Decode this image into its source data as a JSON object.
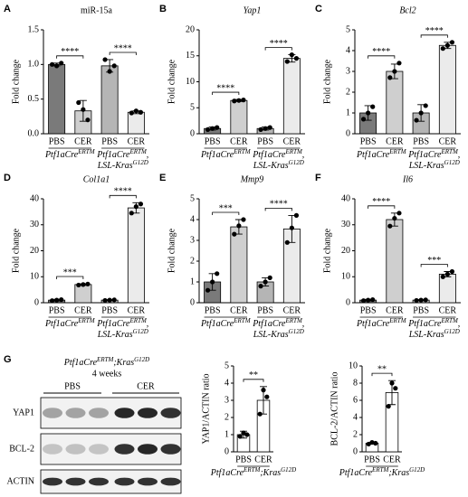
{
  "chart_data": [
    {
      "type": "bar",
      "panel": "A",
      "title": "miR-15a",
      "title_italic": false,
      "ylabel": "Fold change",
      "categories": [
        "PBS",
        "CER",
        "PBS",
        "CER"
      ],
      "groups": [
        [
          [
            {
              "text": "Ptf1aCre"
            },
            {
              "text": "ERTM",
              "sup": true
            }
          ]
        ],
        [
          [
            {
              "text": "Ptf1aCre"
            },
            {
              "text": "ERTM",
              "sup": true
            },
            {
              "text": ","
            }
          ],
          [
            {
              "text": "LSL-Kras"
            },
            {
              "text": "G12D",
              "sup": true
            }
          ]
        ]
      ],
      "values": [
        1.0,
        0.33,
        0.98,
        0.31
      ],
      "errors": [
        0.02,
        0.15,
        0.09,
        0.02
      ],
      "points": [
        [
          1.0,
          0.98,
          1.02
        ],
        [
          0.45,
          0.35,
          0.2
        ],
        [
          1.07,
          0.9,
          0.98
        ],
        [
          0.3,
          0.33,
          0.31
        ]
      ],
      "significance": [
        "****",
        "****"
      ],
      "colors": [
        "#7a7a7a",
        "#cfcfcf",
        "#b5b5b5",
        "#ebebeb"
      ],
      "ylim": [
        0,
        1.5
      ],
      "yticks": [
        {
          "value": 0,
          "label": "0.0"
        },
        0.5,
        {
          "value": 1,
          "label": "1.0"
        },
        1.5
      ]
    },
    {
      "type": "bar",
      "panel": "B",
      "title": "Yap1",
      "title_italic": true,
      "ylabel": "Fold change",
      "categories": [
        "PBS",
        "CER",
        "PBS",
        "CER"
      ],
      "groups": [
        [
          [
            {
              "text": "Ptf1aCre"
            },
            {
              "text": "ERTM",
              "sup": true
            }
          ]
        ],
        [
          [
            {
              "text": "Ptf1aCre"
            },
            {
              "text": "ERTM",
              "sup": true
            },
            {
              "text": ","
            }
          ],
          [
            {
              "text": "LSL-Kras"
            },
            {
              "text": "G12D",
              "sup": true
            }
          ]
        ]
      ],
      "values": [
        1.0,
        6.4,
        1.0,
        14.5
      ],
      "errors": [
        0.3,
        0.2,
        0.3,
        0.7
      ],
      "points": [
        [
          0.8,
          1.0,
          1.2
        ],
        [
          6.3,
          6.4,
          6.5
        ],
        [
          0.8,
          1.0,
          1.2
        ],
        [
          13.9,
          15.2,
          14.5
        ]
      ],
      "significance": [
        "****",
        "****"
      ],
      "colors": [
        "#7a7a7a",
        "#cfcfcf",
        "#b5b5b5",
        "#ebebeb"
      ],
      "ylim": [
        0,
        20
      ],
      "yticks": [
        0,
        5,
        10,
        15,
        20
      ]
    },
    {
      "type": "bar",
      "panel": "C",
      "title": "Bcl2",
      "title_italic": true,
      "ylabel": "Fold change",
      "categories": [
        "PBS",
        "CER",
        "PBS",
        "CER"
      ],
      "groups": [
        [
          [
            {
              "text": "Ptf1aCre"
            },
            {
              "text": "ERTM",
              "sup": true
            }
          ]
        ],
        [
          [
            {
              "text": "Ptf1aCre"
            },
            {
              "text": "ERTM",
              "sup": true
            },
            {
              "text": ","
            }
          ],
          [
            {
              "text": "LSL-Kras"
            },
            {
              "text": "G12D",
              "sup": true
            }
          ]
        ]
      ],
      "values": [
        1.0,
        3.0,
        1.0,
        4.25
      ],
      "errors": [
        0.35,
        0.35,
        0.4,
        0.15
      ],
      "points": [
        [
          0.7,
          1.0,
          1.3
        ],
        [
          2.7,
          3.0,
          3.4
        ],
        [
          0.65,
          1.0,
          1.35
        ],
        [
          4.1,
          4.25,
          4.4
        ]
      ],
      "significance": [
        "****",
        "****"
      ],
      "colors": [
        "#7a7a7a",
        "#cfcfcf",
        "#b5b5b5",
        "#ebebeb"
      ],
      "ylim": [
        0,
        5
      ],
      "yticks": [
        0,
        1,
        2,
        3,
        4,
        5
      ]
    },
    {
      "type": "bar",
      "panel": "D",
      "title": "Col1a1",
      "title_italic": true,
      "ylabel": "Fold change",
      "categories": [
        "PBS",
        "CER",
        "PBS",
        "CER"
      ],
      "groups": [
        [
          [
            {
              "text": "Ptf1aCre"
            },
            {
              "text": "ERTM",
              "sup": true
            }
          ]
        ],
        [
          [
            {
              "text": "Ptf1aCre"
            },
            {
              "text": "ERTM",
              "sup": true
            },
            {
              "text": ","
            }
          ],
          [
            {
              "text": "LSL-Kras"
            },
            {
              "text": "G12D",
              "sup": true
            }
          ]
        ]
      ],
      "values": [
        1.0,
        7.0,
        1.0,
        36.5
      ],
      "errors": [
        0.3,
        0.3,
        0.2,
        2.0
      ],
      "points": [
        [
          0.8,
          1.0,
          1.2
        ],
        [
          6.8,
          7.0,
          7.2
        ],
        [
          0.9,
          1.0,
          1.1
        ],
        [
          34.5,
          37.0,
          38.0
        ]
      ],
      "significance": [
        "***",
        "****"
      ],
      "colors": [
        "#7a7a7a",
        "#cfcfcf",
        "#b5b5b5",
        "#ebebeb"
      ],
      "ylim": [
        0,
        40
      ],
      "yticks": [
        0,
        10,
        20,
        30,
        40
      ]
    },
    {
      "type": "bar",
      "panel": "E",
      "title": "Mmp9",
      "title_italic": true,
      "ylabel": "Fold change",
      "categories": [
        "PBS",
        "CER",
        "PBS",
        "CER"
      ],
      "groups": [
        [
          [
            {
              "text": "Ptf1aCre"
            },
            {
              "text": "ERTM",
              "sup": true
            }
          ]
        ],
        [
          [
            {
              "text": "Ptf1aCre"
            },
            {
              "text": "ERTM",
              "sup": true
            },
            {
              "text": ","
            }
          ],
          [
            {
              "text": "LSL-Kras"
            },
            {
              "text": "G12D",
              "sup": true
            }
          ]
        ]
      ],
      "values": [
        1.0,
        3.65,
        1.0,
        3.55
      ],
      "errors": [
        0.4,
        0.35,
        0.2,
        0.65
      ],
      "points": [
        [
          0.6,
          1.0,
          1.4
        ],
        [
          3.3,
          3.7,
          4.0
        ],
        [
          0.8,
          1.0,
          1.2
        ],
        [
          2.9,
          3.6,
          4.2
        ]
      ],
      "significance": [
        "***",
        "****"
      ],
      "colors": [
        "#7a7a7a",
        "#cfcfcf",
        "#b5b5b5",
        "#ebebeb"
      ],
      "ylim": [
        0,
        5
      ],
      "yticks": [
        0,
        1,
        2,
        3,
        4,
        5
      ]
    },
    {
      "type": "bar",
      "panel": "F",
      "title": "Il6",
      "title_italic": true,
      "ylabel": "Fold change",
      "categories": [
        "PBS",
        "CER",
        "PBS",
        "CER"
      ],
      "groups": [
        [
          [
            {
              "text": "Ptf1aCre"
            },
            {
              "text": "ERTM",
              "sup": true
            }
          ]
        ],
        [
          [
            {
              "text": "Ptf1aCre"
            },
            {
              "text": "ERTM",
              "sup": true
            },
            {
              "text": ","
            }
          ],
          [
            {
              "text": "LSL-Kras"
            },
            {
              "text": "G12D",
              "sup": true
            }
          ]
        ]
      ],
      "values": [
        1.0,
        32.0,
        1.0,
        11.0
      ],
      "errors": [
        0.3,
        2.5,
        0.2,
        1.0
      ],
      "points": [
        [
          0.8,
          1.0,
          1.2
        ],
        [
          29.5,
          32.5,
          34.5
        ],
        [
          0.9,
          1.0,
          1.1
        ],
        [
          10.0,
          11.0,
          12.0
        ]
      ],
      "significance": [
        "****",
        "***"
      ],
      "colors": [
        "#7a7a7a",
        "#cfcfcf",
        "#b5b5b5",
        "#ebebeb"
      ],
      "ylim": [
        0,
        40
      ],
      "yticks": [
        0,
        10,
        20,
        30,
        40
      ]
    },
    {
      "type": "bar",
      "ylabel": "YAP1/ACTIN ratio",
      "categories": [
        "PBS",
        "CER"
      ],
      "groups": [
        [
          [
            {
              "text": "Ptf1aCre"
            },
            {
              "text": "ERTM",
              "sup": true
            },
            {
              "text": ";Kras"
            },
            {
              "text": "G12D",
              "sup": true
            }
          ]
        ]
      ],
      "values": [
        1.0,
        3.0
      ],
      "errors": [
        0.2,
        0.8
      ],
      "points": [
        [
          0.9,
          1.1,
          1.0
        ],
        [
          2.2,
          3.6,
          3.2
        ]
      ],
      "significance": [
        "**"
      ],
      "colors": [
        "#ffffff",
        "#ffffff"
      ],
      "ylim": [
        0,
        5
      ],
      "yticks": [
        0,
        1,
        2,
        3,
        4,
        5
      ]
    },
    {
      "type": "bar",
      "ylabel": "BCL-2/ACTIN ratio",
      "categories": [
        "PBS",
        "CER"
      ],
      "groups": [
        [
          [
            {
              "text": "Ptf1aCre"
            },
            {
              "text": "ERTM",
              "sup": true
            },
            {
              "text": ";Kras"
            },
            {
              "text": "G12D",
              "sup": true
            }
          ]
        ]
      ],
      "values": [
        1.0,
        6.9
      ],
      "errors": [
        0.1,
        1.4
      ],
      "points": [
        [
          0.9,
          1.1,
          1.0
        ],
        [
          5.3,
          8.0,
          7.4
        ]
      ],
      "significance": [
        "**"
      ],
      "colors": [
        "#ffffff",
        "#ffffff"
      ],
      "ylim": [
        0,
        10
      ],
      "yticks": [
        0,
        2,
        4,
        6,
        8,
        10
      ]
    }
  ],
  "blot": {
    "panel": "G",
    "title": [
      {
        "text": "Ptf1aCre"
      },
      {
        "text": "ERTM",
        "sup": true
      },
      {
        "text": ";Kras"
      },
      {
        "text": "G12D",
        "sup": true
      }
    ],
    "subtitle": "4 weeks",
    "groups": [
      "PBS",
      "CER"
    ],
    "rows": [
      "YAP1",
      "BCL-2",
      "ACTIN"
    ]
  }
}
